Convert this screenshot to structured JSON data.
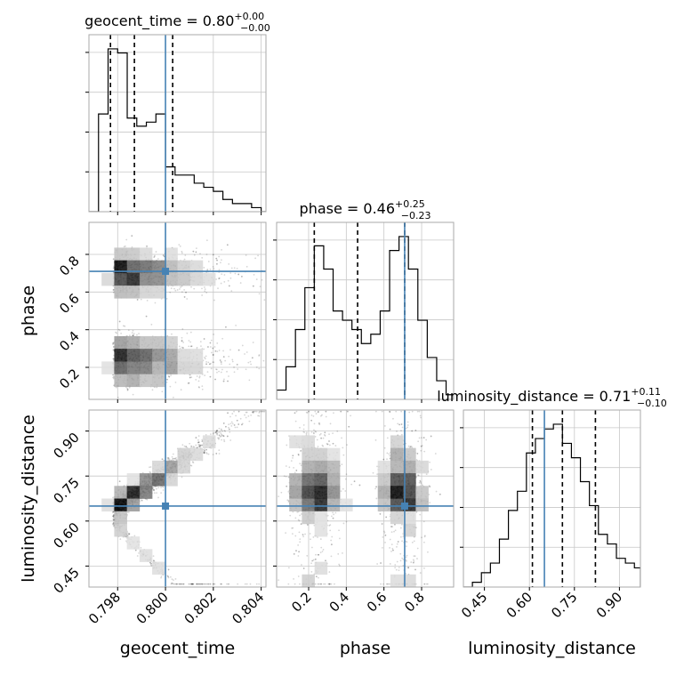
{
  "chart_data": {
    "type": "corner",
    "parameters": [
      "geocent_time",
      "phase",
      "luminosity_distance"
    ],
    "axis_labels": {
      "x": [
        "geocent_time",
        "phase",
        "luminosity_distance"
      ],
      "y": [
        "phase",
        "luminosity_distance"
      ]
    },
    "titles": [
      {
        "param": "geocent_time",
        "median": "0.80",
        "plus": "+0.00",
        "minus": "−0.00"
      },
      {
        "param": "phase",
        "median": "0.46",
        "plus": "+0.25",
        "minus": "−0.23"
      },
      {
        "param": "luminosity_distance",
        "median": "0.71",
        "plus": "+0.11",
        "minus": "−0.10"
      }
    ],
    "ranges": {
      "geocent_time": [
        0.7968,
        0.8042
      ],
      "phase": [
        0.03,
        0.97
      ],
      "luminosity_distance": [
        0.38,
        0.97
      ]
    },
    "ticks": {
      "geocent_time": {
        "values": [
          0.798,
          0.8,
          0.802,
          0.804
        ],
        "labels": [
          "0.798",
          "0.800",
          "0.802",
          "0.804"
        ]
      },
      "phase": {
        "values": [
          0.2,
          0.4,
          0.6,
          0.8
        ],
        "labels": [
          "0.2",
          "0.4",
          "0.6",
          "0.8"
        ]
      },
      "luminosity_distance": {
        "values": [
          0.45,
          0.6,
          0.75,
          0.9
        ],
        "labels": [
          "0.45",
          "0.60",
          "0.75",
          "0.90"
        ]
      }
    },
    "truths": {
      "geocent_time": 0.8,
      "phase": 0.71,
      "luminosity_distance": 0.65
    },
    "quantiles": {
      "geocent_time": [
        0.7977,
        0.7987,
        0.8003
      ],
      "phase": [
        0.23,
        0.46,
        0.71
      ],
      "luminosity_distance": [
        0.61,
        0.71,
        0.82
      ]
    },
    "histograms": {
      "geocent_time": {
        "edges": [
          0.7968,
          0.7972,
          0.7976,
          0.798,
          0.7984,
          0.7988,
          0.7992,
          0.7996,
          0.8,
          0.8004,
          0.8008,
          0.8012,
          0.8016,
          0.802,
          0.8024,
          0.8028,
          0.8032,
          0.8036,
          0.804,
          0.8042
        ],
        "counts": [
          0,
          24,
          40,
          39,
          23,
          21,
          22,
          24,
          11,
          9,
          9,
          7,
          6,
          5,
          3,
          2,
          2,
          1,
          0
        ]
      },
      "phase": {
        "edges": [
          0.03,
          0.08,
          0.13,
          0.18,
          0.23,
          0.28,
          0.33,
          0.38,
          0.43,
          0.48,
          0.53,
          0.58,
          0.63,
          0.68,
          0.73,
          0.78,
          0.83,
          0.88,
          0.93,
          0.97
        ],
        "counts": [
          2,
          7,
          15,
          24,
          33,
          28,
          19,
          17,
          15,
          12,
          14,
          19,
          32,
          35,
          28,
          17,
          9,
          4,
          1
        ]
      },
      "luminosity_distance": {
        "edges": [
          0.38,
          0.41,
          0.44,
          0.47,
          0.5,
          0.53,
          0.56,
          0.59,
          0.62,
          0.65,
          0.68,
          0.71,
          0.74,
          0.77,
          0.8,
          0.83,
          0.86,
          0.89,
          0.92,
          0.95,
          0.97
        ],
        "counts": [
          0,
          1,
          3,
          5,
          10,
          16,
          20,
          28,
          31,
          33,
          34,
          30,
          27,
          22,
          17,
          11,
          9,
          6,
          5,
          4
        ]
      }
    },
    "grid": true,
    "truth_color": "#4682b4",
    "quantile_style": "dashed-black"
  }
}
